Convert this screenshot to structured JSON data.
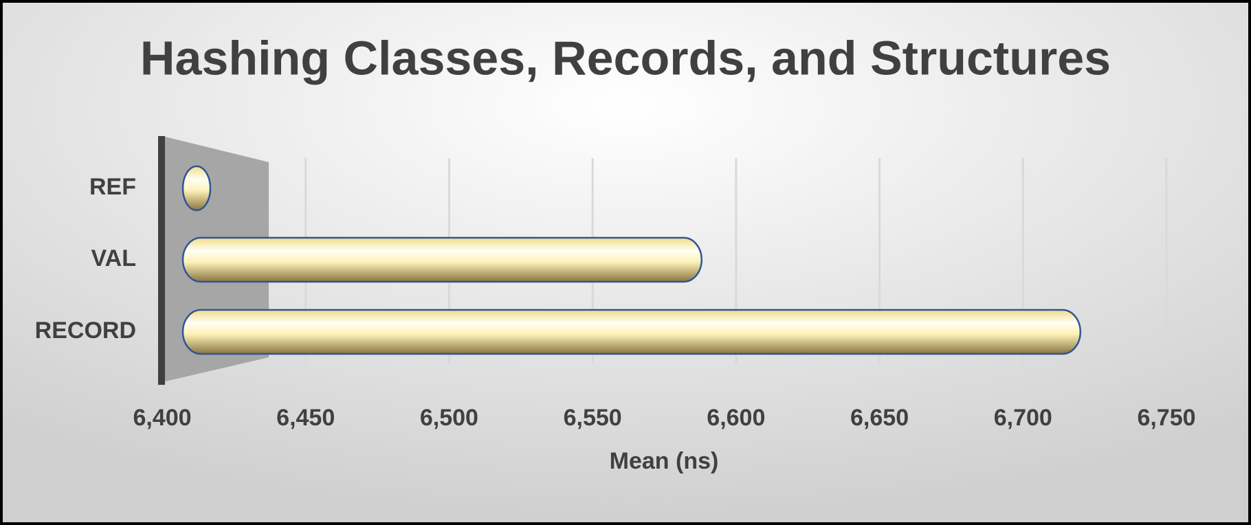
{
  "chart_data": {
    "type": "bar",
    "orientation": "horizontal",
    "title": "Hashing Classes, Records, and Structures",
    "categories": [
      "REF",
      "VAL",
      "RECORD"
    ],
    "values": [
      6414,
      6588,
      6720
    ],
    "color": "#f5e9a8",
    "xlabel": "Mean (ns)",
    "xlim": [
      6400,
      6750
    ],
    "xticks": [
      {
        "value": 6400,
        "label": "6,400"
      },
      {
        "value": 6450,
        "label": "6,450"
      },
      {
        "value": 6500,
        "label": "6,500"
      },
      {
        "value": 6550,
        "label": "6,550"
      },
      {
        "value": 6600,
        "label": "6,600"
      },
      {
        "value": 6650,
        "label": "6,650"
      },
      {
        "value": 6700,
        "label": "6,700"
      },
      {
        "value": 6750,
        "label": "6,750"
      }
    ],
    "grid": true
  }
}
